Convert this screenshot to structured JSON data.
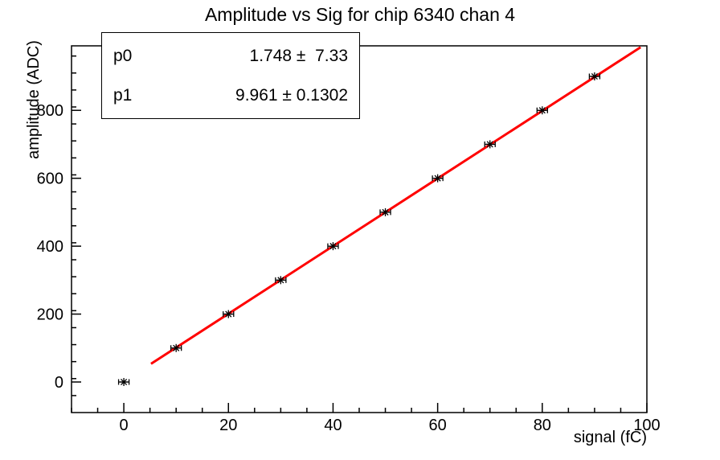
{
  "title": "Amplitude vs Sig for chip 6340 chan 4",
  "stats_box": {
    "rows": [
      {
        "label": "p0",
        "value": "1.748 ±  7.33"
      },
      {
        "label": "p1",
        "value": "9.961 ± 0.1302"
      }
    ]
  },
  "chart_data": {
    "type": "scatter",
    "title": "Amplitude vs Sig for chip 6340 chan 4",
    "xlabel": "signal (fC)",
    "ylabel": "amplitude (ADC)",
    "xlim": [
      -10,
      100
    ],
    "ylim": [
      -90,
      990
    ],
    "grid": false,
    "legend": "none",
    "x_major_ticks": [
      0,
      20,
      40,
      60,
      80,
      100
    ],
    "x_minor_step": 5,
    "y_major_ticks": [
      0,
      200,
      400,
      600,
      800
    ],
    "y_minor_step": 50,
    "points": {
      "x": [
        0,
        10,
        20,
        30,
        40,
        50,
        60,
        70,
        80,
        90
      ],
      "y": [
        0,
        100,
        200,
        300,
        400,
        500,
        600,
        700,
        800,
        900
      ],
      "xerr": 1,
      "marker": "asterisk",
      "color": "#000000"
    },
    "fit": {
      "name": "linear",
      "p0": 1.748,
      "p0_err": 7.33,
      "p1": 9.961,
      "p1_err": 0.1302,
      "x_start": 5.2,
      "x_end": 98.8,
      "color": "#ff0000",
      "line_width": 3
    },
    "frame_color": "#000000",
    "background_color": "#ffffff"
  }
}
